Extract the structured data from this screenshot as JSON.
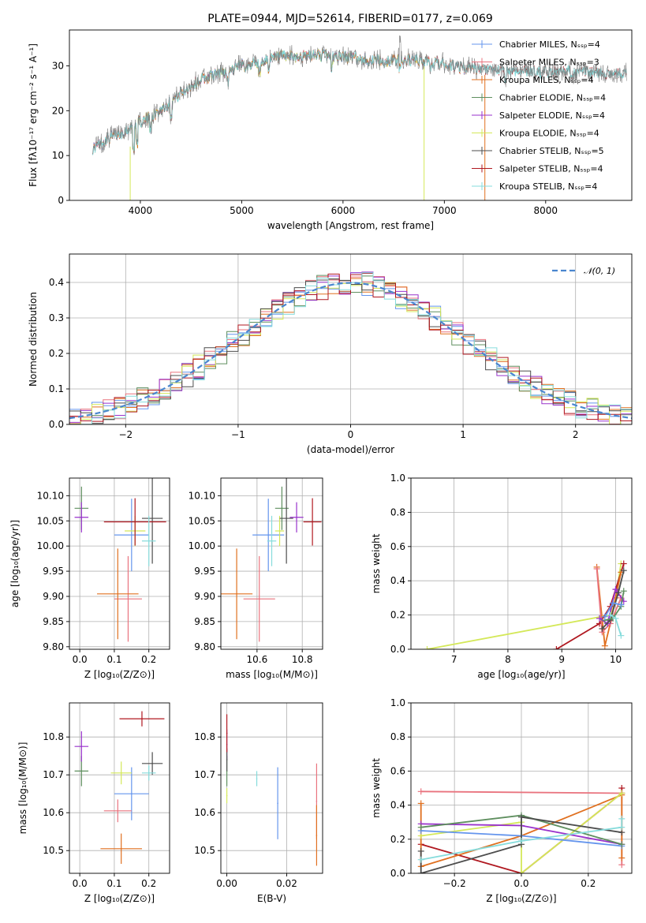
{
  "colors": {
    "chabrier_miles": "#6495ed",
    "salpeter_miles": "#e9737e",
    "kroupa_miles": "#e07020",
    "chabrier_elodie": "#5f8f5f",
    "salpeter_elodie": "#9932cc",
    "kroupa_elodie": "#d4e859",
    "chabrier_stelib": "#4d4d4d",
    "salpeter_stelib": "#b01820",
    "kroupa_stelib": "#86dcdc",
    "gaussian": "#4a86cf"
  },
  "chart_data": [
    {
      "id": "spectrum",
      "type": "line",
      "title": "PLATE=0944, MJD=52614, FIBERID=0177, z=0.069",
      "xlabel": "wavelength [Angstrom, rest frame]",
      "ylabel": "Flux [fλ10⁻¹⁷ erg cm⁻² s⁻¹ A⁻¹]",
      "xlim": [
        3300,
        8850
      ],
      "ylim": [
        0,
        38
      ],
      "xticks": [
        "4000",
        "5000",
        "6000",
        "7000",
        "8000"
      ],
      "yticks": [
        "0",
        "10",
        "20",
        "30"
      ],
      "grid": false,
      "legend_position": "top-right",
      "legend": [
        "Chabrier MILES, Nₛₛₚ=4",
        "Salpeter MILES, Nₛₛₚ=3",
        "Kroupa MILES, Nₛₛₚ=4",
        "Chabrier ELODIE, Nₛₛₚ=4",
        "Salpeter ELODIE, Nₛₛₚ=4",
        "Kroupa ELODIE, Nₛₛₚ=4",
        "Chabrier STELIB, Nₛₛₚ=5",
        "Salpeter STELIB, Nₛₛₚ=4",
        "Kroupa STELIB, Nₛₛₚ=4"
      ],
      "continuum": {
        "wavelength": [
          3530,
          3700,
          3850,
          4000,
          4100,
          4250,
          4400,
          4600,
          4800,
          5000,
          5200,
          5400,
          5600,
          5800,
          6000,
          6200,
          6400,
          6600,
          6800,
          7000,
          7200,
          7400
        ],
        "flux": [
          11.5,
          14,
          15.5,
          17.5,
          18.5,
          21,
          24,
          27,
          28.5,
          30,
          31,
          32,
          32,
          32.5,
          32,
          31.5,
          31,
          31.5,
          31,
          30.5,
          29.5,
          29
        ]
      },
      "model_coverage": {
        "MILES": [
          3530,
          7400
        ],
        "ELODIE": [
          3900,
          6800
        ],
        "STELIB": [
          3530,
          8800
        ]
      }
    },
    {
      "id": "residuals",
      "type": "line",
      "xlabel": "(data-model)/error",
      "ylabel": "Normed distribution",
      "xlim": [
        -2.5,
        2.5
      ],
      "ylim": [
        0,
        0.48
      ],
      "xticks": [
        "−2",
        "−1",
        "0",
        "1",
        "2"
      ],
      "yticks": [
        "0.0",
        "0.1",
        "0.2",
        "0.3",
        "0.4"
      ],
      "grid": true,
      "legend_position": "top-right",
      "legend": [
        "𝒩(0, 1)"
      ],
      "bin_width": 0.1,
      "reference": "standard normal density"
    },
    {
      "id": "age_vs_Z",
      "type": "scatter",
      "xlabel": "Z [log₁₀(Z/Z⊙)]",
      "ylabel": "age  [log₁₀(age/yr)]",
      "xlim": [
        -0.03,
        0.26
      ],
      "ylim": [
        9.795,
        10.135
      ],
      "xticks": [
        "0.0",
        "0.1",
        "0.2"
      ],
      "yticks": [
        "9.80",
        "9.85",
        "9.90",
        "9.95",
        "10.00",
        "10.05",
        "10.10"
      ],
      "grid": true,
      "points": [
        {
          "model": "chabrier_miles",
          "x": 0.15,
          "y": 10.022,
          "xerr": 0.05,
          "yerr": 0.072
        },
        {
          "model": "salpeter_miles",
          "x": 0.14,
          "y": 9.895,
          "xerr": 0.04,
          "yerr": 0.085
        },
        {
          "model": "kroupa_miles",
          "x": 0.11,
          "y": 9.905,
          "xerr": 0.06,
          "yerr": 0.09
        },
        {
          "model": "chabrier_elodie",
          "x": 0.005,
          "y": 10.075,
          "xerr": 0.02,
          "yerr": 0.043
        },
        {
          "model": "salpeter_elodie",
          "x": 0.005,
          "y": 10.057,
          "xerr": 0.02,
          "yerr": 0.03
        },
        {
          "model": "kroupa_elodie",
          "x": 0.16,
          "y": 10.03,
          "xerr": 0.03,
          "yerr": 0.03
        },
        {
          "model": "chabrier_stelib",
          "x": 0.21,
          "y": 10.055,
          "xerr": 0.03,
          "yerr": 0.09
        },
        {
          "model": "salpeter_stelib",
          "x": 0.16,
          "y": 10.048,
          "xerr": 0.09,
          "yerr": 0.047
        },
        {
          "model": "kroupa_stelib",
          "x": 0.2,
          "y": 10.01,
          "xerr": 0.02,
          "yerr": 0.05
        }
      ]
    },
    {
      "id": "age_vs_mass",
      "type": "scatter",
      "xlabel": "mass [log₁₀(M/M⊙)]",
      "ylabel": "",
      "xlim": [
        10.44,
        10.89
      ],
      "ylim": [
        9.795,
        10.135
      ],
      "xticks": [
        "10.6",
        "10.8"
      ],
      "yticks": [
        "9.80",
        "9.85",
        "9.90",
        "9.95",
        "10.00",
        "10.05",
        "10.10"
      ],
      "grid": true,
      "points": [
        {
          "model": "chabrier_miles",
          "x": 10.65,
          "y": 10.022,
          "xerr": 0.07,
          "yerr": 0.072
        },
        {
          "model": "salpeter_miles",
          "x": 10.61,
          "y": 9.895,
          "xerr": 0.07,
          "yerr": 0.085
        },
        {
          "model": "kroupa_miles",
          "x": 10.51,
          "y": 9.905,
          "xerr": 0.07,
          "yerr": 0.09
        },
        {
          "model": "chabrier_elodie",
          "x": 10.71,
          "y": 10.075,
          "xerr": 0.03,
          "yerr": 0.043
        },
        {
          "model": "salpeter_elodie",
          "x": 10.775,
          "y": 10.057,
          "xerr": 0.03,
          "yerr": 0.03
        },
        {
          "model": "kroupa_elodie",
          "x": 10.7,
          "y": 10.03,
          "xerr": 0.02,
          "yerr": 0.03
        },
        {
          "model": "chabrier_stelib",
          "x": 10.73,
          "y": 10.055,
          "xerr": 0.03,
          "yerr": 0.09
        },
        {
          "model": "salpeter_stelib",
          "x": 10.845,
          "y": 10.048,
          "xerr": 0.04,
          "yerr": 0.047
        },
        {
          "model": "kroupa_stelib",
          "x": 10.665,
          "y": 10.01,
          "xerr": 0.02,
          "yerr": 0.05
        }
      ]
    },
    {
      "id": "weight_vs_age",
      "type": "line",
      "xlabel": "age  [log₁₀(age/yr)]",
      "ylabel": "mass weight",
      "xlim": [
        6.2,
        10.3
      ],
      "ylim": [
        0,
        1
      ],
      "xticks": [
        "7",
        "8",
        "9",
        "10"
      ],
      "yticks": [
        "0.0",
        "0.2",
        "0.4",
        "0.6",
        "0.8",
        "1.0"
      ],
      "grid": true,
      "series": [
        {
          "model": "kroupa_elodie",
          "x": [
            6.5,
            9.9,
            10.0,
            10.1
          ],
          "y": [
            0.0,
            0.2,
            0.3,
            0.5
          ]
        },
        {
          "model": "salpeter_stelib",
          "x": [
            8.9,
            9.7,
            9.9,
            10.0,
            10.15
          ],
          "y": [
            0.0,
            0.15,
            0.25,
            0.35,
            0.5
          ]
        },
        {
          "model": "kroupa_miles",
          "x": [
            9.65,
            9.8,
            9.9,
            10.0,
            10.1
          ],
          "y": [
            0.48,
            0.02,
            0.15,
            0.3,
            0.45
          ]
        },
        {
          "model": "salpeter_miles",
          "x": [
            9.65,
            9.75,
            9.9,
            10.1
          ],
          "y": [
            0.47,
            0.1,
            0.15,
            0.3
          ]
        },
        {
          "model": "salpeter_elodie",
          "x": [
            9.7,
            9.85,
            10.0,
            10.15
          ],
          "y": [
            0.18,
            0.15,
            0.35,
            0.28
          ]
        },
        {
          "model": "chabrier_stelib",
          "x": [
            9.75,
            9.9,
            10.05,
            10.15
          ],
          "y": [
            0.12,
            0.17,
            0.33,
            0.46
          ]
        },
        {
          "model": "chabrier_elodie",
          "x": [
            9.8,
            9.95,
            10.1,
            10.15
          ],
          "y": [
            0.17,
            0.18,
            0.25,
            0.34
          ]
        },
        {
          "model": "chabrier_miles",
          "x": [
            9.8,
            9.95,
            10.1
          ],
          "y": [
            0.19,
            0.27,
            0.26
          ]
        },
        {
          "model": "kroupa_stelib",
          "x": [
            9.9,
            10.0,
            10.1
          ],
          "y": [
            0.2,
            0.18,
            0.08
          ]
        }
      ]
    },
    {
      "id": "mass_vs_Z",
      "type": "scatter",
      "xlabel": "Z [log₁₀(Z/Z⊙)]",
      "ylabel": "mass [log₁₀(M/M⊙)]",
      "xlim": [
        -0.03,
        0.26
      ],
      "ylim": [
        10.44,
        10.89
      ],
      "xticks": [
        "0.0",
        "0.1",
        "0.2"
      ],
      "yticks": [
        "10.5",
        "10.6",
        "10.7",
        "10.8"
      ],
      "grid": true,
      "points": [
        {
          "model": "chabrier_miles",
          "x": 0.15,
          "y": 10.65,
          "xerr": 0.05,
          "yerr": 0.07
        },
        {
          "model": "salpeter_miles",
          "x": 0.11,
          "y": 10.605,
          "xerr": 0.04,
          "yerr": 0.03
        },
        {
          "model": "kroupa_miles",
          "x": 0.12,
          "y": 10.505,
          "xerr": 0.06,
          "yerr": 0.04
        },
        {
          "model": "chabrier_elodie",
          "x": 0.005,
          "y": 10.71,
          "xerr": 0.02,
          "yerr": 0.04
        },
        {
          "model": "salpeter_elodie",
          "x": 0.005,
          "y": 10.775,
          "xerr": 0.02,
          "yerr": 0.04
        },
        {
          "model": "kroupa_elodie",
          "x": 0.12,
          "y": 10.705,
          "xerr": 0.03,
          "yerr": 0.03
        },
        {
          "model": "chabrier_stelib",
          "x": 0.21,
          "y": 10.73,
          "xerr": 0.03,
          "yerr": 0.03
        },
        {
          "model": "salpeter_stelib",
          "x": 0.18,
          "y": 10.848,
          "xerr": 0.065,
          "yerr": 0.02
        },
        {
          "model": "kroupa_stelib",
          "x": 0.2,
          "y": 10.705,
          "xerr": 0.02,
          "yerr": 0.02
        }
      ]
    },
    {
      "id": "mass_vs_ebv",
      "type": "scatter",
      "xlabel": "E(B-V)",
      "ylabel": "",
      "xlim": [
        -0.002,
        0.032
      ],
      "ylim": [
        10.44,
        10.89
      ],
      "xticks": [
        "0.00",
        "0.02"
      ],
      "yticks": [
        "10.5",
        "10.6",
        "10.7",
        "10.8"
      ],
      "grid": true,
      "points": [
        {
          "model": "chabrier_miles",
          "x": 0.017,
          "y": 10.625,
          "xerr": 0,
          "yerr": 0.095
        },
        {
          "model": "salpeter_miles",
          "x": 0.03,
          "y": 10.63,
          "xerr": 0,
          "yerr": 0.1
        },
        {
          "model": "kroupa_miles",
          "x": 0.03,
          "y": 10.54,
          "xerr": 0,
          "yerr": 0.08
        },
        {
          "model": "chabrier_elodie",
          "x": 0.0,
          "y": 10.71,
          "xerr": 0,
          "yerr": 0.04
        },
        {
          "model": "salpeter_elodie",
          "x": 0.0,
          "y": 10.78,
          "xerr": 0,
          "yerr": 0.04
        },
        {
          "model": "kroupa_elodie",
          "x": 0.0,
          "y": 10.645,
          "xerr": 0,
          "yerr": 0.02
        },
        {
          "model": "chabrier_stelib",
          "x": 0.0,
          "y": 10.74,
          "xerr": 0,
          "yerr": 0.03
        },
        {
          "model": "salpeter_stelib",
          "x": 0.0,
          "y": 10.81,
          "xerr": 0,
          "yerr": 0.05
        },
        {
          "model": "kroupa_stelib",
          "x": 0.01,
          "y": 10.69,
          "xerr": 0,
          "yerr": 0.02
        }
      ]
    },
    {
      "id": "weight_vs_Z",
      "type": "line",
      "xlabel": "Z [log₁₀(Z/Z⊙)]",
      "ylabel": "mass weight",
      "xlim": [
        -0.33,
        0.33
      ],
      "ylim": [
        0,
        1
      ],
      "xticks": [
        "−0.2",
        "0.0",
        "0.2"
      ],
      "yticks": [
        "0.0",
        "0.2",
        "0.4",
        "0.6",
        "0.8",
        "1.0"
      ],
      "grid": true,
      "series": [
        {
          "model": "salpeter_miles",
          "x": [
            -0.3,
            0.3,
            0.3
          ],
          "y": [
            0.48,
            0.47,
            0.05
          ]
        },
        {
          "model": "salpeter_stelib",
          "x": [
            -0.3,
            0.0,
            0.3,
            0.3
          ],
          "y": [
            0.17,
            0.0,
            0.47,
            0.5
          ]
        },
        {
          "model": "kroupa_miles",
          "x": [
            -0.3,
            -0.3,
            0.0,
            0.3,
            0.3
          ],
          "y": [
            0.41,
            0.04,
            0.22,
            0.46,
            0.09
          ]
        },
        {
          "model": "kroupa_elodie",
          "x": [
            -0.3,
            0.0,
            0.0,
            0.3
          ],
          "y": [
            0.22,
            0.3,
            0.0,
            0.47
          ]
        },
        {
          "model": "salpeter_elodie",
          "x": [
            -0.3,
            0.0,
            0.3
          ],
          "y": [
            0.29,
            0.28,
            0.17
          ]
        },
        {
          "model": "chabrier_miles",
          "x": [
            -0.3,
            0.0,
            0.3
          ],
          "y": [
            0.25,
            0.22,
            0.16
          ]
        },
        {
          "model": "chabrier_elodie",
          "x": [
            -0.3,
            0.0,
            0.3
          ],
          "y": [
            0.27,
            0.34,
            0.17
          ]
        },
        {
          "model": "chabrier_stelib",
          "x": [
            -0.3,
            -0.3,
            0.0,
            0.0,
            0.3
          ],
          "y": [
            0.13,
            0.0,
            0.17,
            0.33,
            0.24
          ]
        },
        {
          "model": "kroupa_stelib",
          "x": [
            -0.3,
            0.0,
            0.3,
            0.3
          ],
          "y": [
            0.08,
            0.19,
            0.27,
            0.32
          ]
        }
      ]
    }
  ]
}
